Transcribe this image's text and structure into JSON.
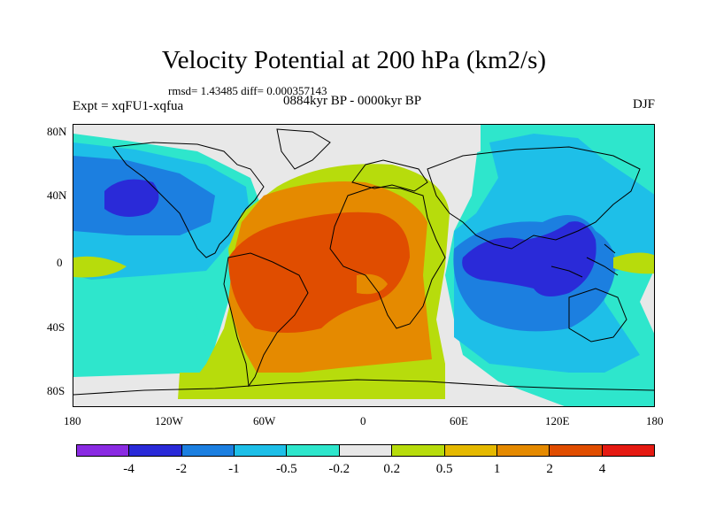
{
  "title": "Velocity Potential at 200 hPa (km2/s)",
  "stats": "rmsd= 1.43485 diff= 0.000357143",
  "expt": "Expt = xqFU1-xqfua",
  "period": "0884kyr BP - 0000kyr BP",
  "season": "DJF",
  "y_axis_labels": [
    "80N",
    "40N",
    "0",
    "40S",
    "80S"
  ],
  "x_axis_labels": [
    "180",
    "120W",
    "60W",
    "0",
    "60E",
    "120E",
    "180"
  ],
  "colorbar": {
    "colors": [
      "#8a2be2",
      "#2a2ad8",
      "#1c7fe0",
      "#1ebfe8",
      "#2ee6cc",
      "#e8e8e8",
      "#b7dc0c",
      "#e5b900",
      "#e58a00",
      "#e04d00",
      "#e51a12"
    ],
    "labels": [
      "-4",
      "-2",
      "-1",
      "-0.5",
      "-0.2",
      "0.2",
      "0.5",
      "1",
      "2",
      "4"
    ]
  }
}
